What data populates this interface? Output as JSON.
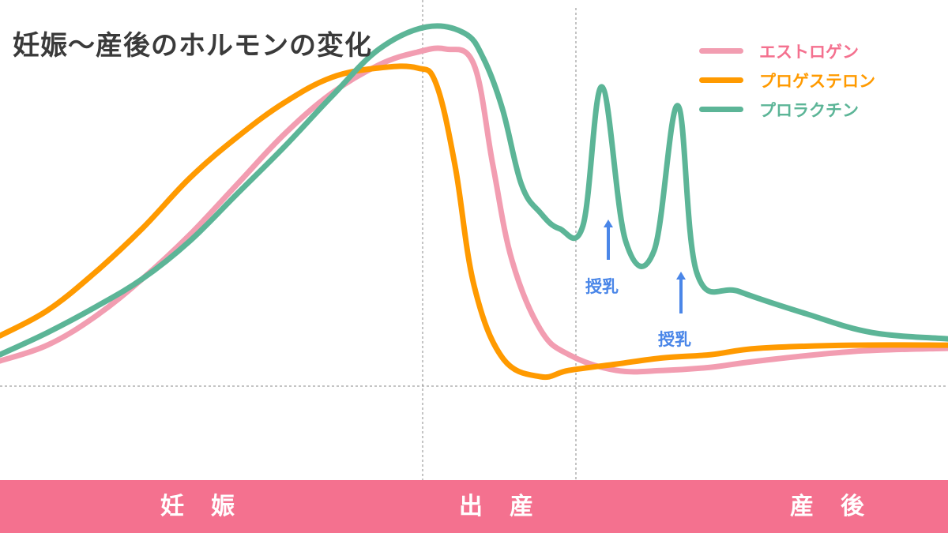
{
  "chart_data": {
    "type": "line",
    "title": "妊娠～産後のホルモンの変化",
    "xlabel": "",
    "ylabel": "",
    "grid": false,
    "legend_position": "top-right",
    "phases": [
      "妊娠",
      "出産",
      "産後"
    ],
    "series": [
      {
        "name": "エストロゲン",
        "color": "#f29db1",
        "points": [
          [
            0,
            0.08
          ],
          [
            0.05,
            0.13
          ],
          [
            0.1,
            0.22
          ],
          [
            0.15,
            0.34
          ],
          [
            0.2,
            0.48
          ],
          [
            0.25,
            0.64
          ],
          [
            0.3,
            0.8
          ],
          [
            0.35,
            0.93
          ],
          [
            0.4,
            1.02
          ],
          [
            0.44,
            1.06
          ],
          [
            0.47,
            1.07
          ],
          [
            0.5,
            1.02
          ],
          [
            0.52,
            0.7
          ],
          [
            0.54,
            0.4
          ],
          [
            0.57,
            0.18
          ],
          [
            0.6,
            0.1
          ],
          [
            0.65,
            0.05
          ],
          [
            0.7,
            0.05
          ],
          [
            0.75,
            0.06
          ],
          [
            0.8,
            0.08
          ],
          [
            0.9,
            0.11
          ],
          [
            1.0,
            0.12
          ]
        ]
      },
      {
        "name": "プロゲステロン",
        "color": "#ff9a00",
        "points": [
          [
            0,
            0.16
          ],
          [
            0.05,
            0.24
          ],
          [
            0.1,
            0.36
          ],
          [
            0.15,
            0.5
          ],
          [
            0.2,
            0.66
          ],
          [
            0.25,
            0.79
          ],
          [
            0.3,
            0.9
          ],
          [
            0.35,
            0.98
          ],
          [
            0.4,
            1.01
          ],
          [
            0.44,
            1.01
          ],
          [
            0.46,
            0.96
          ],
          [
            0.48,
            0.7
          ],
          [
            0.5,
            0.32
          ],
          [
            0.53,
            0.09
          ],
          [
            0.57,
            0.03
          ],
          [
            0.6,
            0.05
          ],
          [
            0.65,
            0.07
          ],
          [
            0.7,
            0.09
          ],
          [
            0.75,
            0.1
          ],
          [
            0.8,
            0.12
          ],
          [
            0.9,
            0.13
          ],
          [
            1.0,
            0.13
          ]
        ]
      },
      {
        "name": "プロラクチン",
        "color": "#5cb597",
        "points": [
          [
            0,
            0.1
          ],
          [
            0.05,
            0.17
          ],
          [
            0.1,
            0.25
          ],
          [
            0.15,
            0.34
          ],
          [
            0.2,
            0.46
          ],
          [
            0.25,
            0.61
          ],
          [
            0.3,
            0.76
          ],
          [
            0.35,
            0.92
          ],
          [
            0.4,
            1.07
          ],
          [
            0.45,
            1.14
          ],
          [
            0.49,
            1.12
          ],
          [
            0.51,
            1.04
          ],
          [
            0.53,
            0.88
          ],
          [
            0.55,
            0.64
          ],
          [
            0.57,
            0.55
          ],
          [
            0.59,
            0.5
          ],
          [
            0.615,
            0.51
          ],
          [
            0.635,
            0.95
          ],
          [
            0.66,
            0.46
          ],
          [
            0.69,
            0.43
          ],
          [
            0.715,
            0.89
          ],
          [
            0.735,
            0.36
          ],
          [
            0.78,
            0.3
          ],
          [
            0.85,
            0.23
          ],
          [
            0.92,
            0.17
          ],
          [
            1.0,
            0.15
          ]
        ]
      }
    ],
    "annotations": [
      {
        "text": "授乳"
      },
      {
        "text": "授乳"
      }
    ]
  }
}
